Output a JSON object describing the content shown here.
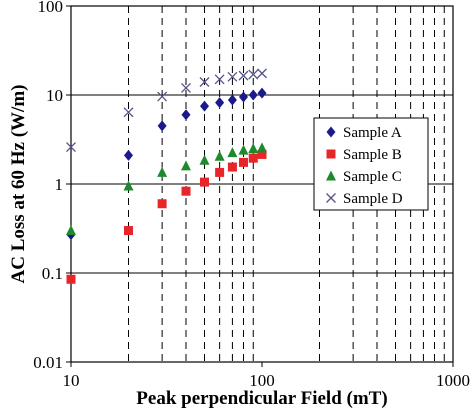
{
  "chart_data": {
    "type": "scatter",
    "xlabel": "Peak perpendicular Field (mT)",
    "ylabel": "AC Loss at 60 Hz (W/m)",
    "xscale": "log",
    "yscale": "log",
    "xlim": [
      10,
      1000
    ],
    "ylim": [
      0.01,
      100
    ],
    "x_ticks": [
      "10",
      "100",
      "1000"
    ],
    "y_ticks": [
      "0.01",
      "0.1",
      "1",
      "10",
      "100"
    ],
    "grid": "x minor dashed vertical lines, y major solid horizontal lines",
    "legend_position": "right",
    "series": [
      {
        "name": "Sample A",
        "marker": "diamond",
        "color": "#1a1a8c",
        "x": [
          10,
          20,
          30,
          40,
          50,
          60,
          70,
          80,
          90,
          100
        ],
        "y": [
          0.27,
          2.1,
          4.5,
          6.0,
          7.5,
          8.2,
          8.8,
          9.5,
          10.0,
          10.5
        ]
      },
      {
        "name": "Sample B",
        "marker": "square",
        "color": "#e8262a",
        "x": [
          10,
          20,
          30,
          40,
          50,
          60,
          70,
          80,
          90,
          100
        ],
        "y": [
          0.085,
          0.3,
          0.6,
          0.83,
          1.05,
          1.35,
          1.55,
          1.75,
          1.95,
          2.15
        ]
      },
      {
        "name": "Sample C",
        "marker": "triangle",
        "color": "#1e8a2e",
        "x": [
          10,
          20,
          30,
          40,
          50,
          60,
          70,
          80,
          90,
          100
        ],
        "y": [
          0.3,
          0.95,
          1.35,
          1.6,
          1.85,
          2.05,
          2.25,
          2.4,
          2.5,
          2.55
        ]
      },
      {
        "name": "Sample D",
        "marker": "x",
        "color": "#55558c",
        "x": [
          10,
          20,
          30,
          40,
          50,
          60,
          70,
          80,
          90,
          100
        ],
        "y": [
          2.6,
          6.4,
          9.6,
          12.0,
          14.0,
          15.0,
          16.0,
          16.5,
          17.0,
          17.5
        ]
      }
    ]
  }
}
